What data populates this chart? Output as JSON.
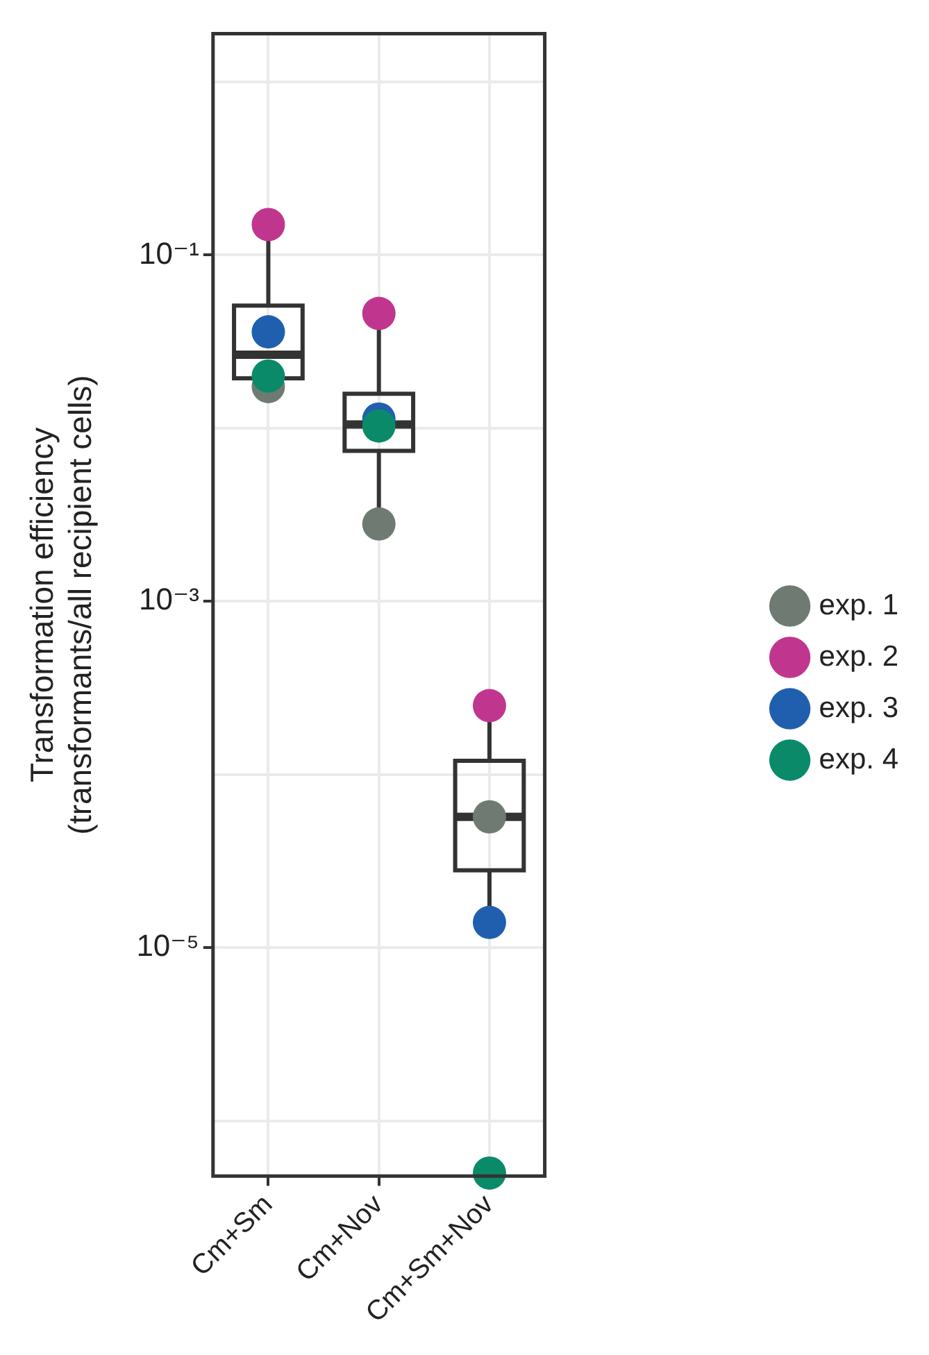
{
  "chart_data": {
    "type": "box",
    "categories": [
      "Cm+Sm",
      "Cm+Nov",
      "Cm+Sm+Nov"
    ],
    "boxes": [
      {
        "low": 0.0174,
        "q1": 0.0194,
        "median": 0.0266,
        "q3": 0.051,
        "high": 0.15
      },
      {
        "low": 0.0028,
        "q1": 0.0074,
        "median": 0.0105,
        "q3": 0.0158,
        "high": 0.046
      },
      {
        "low": 1.4e-05,
        "q1": 2.8e-05,
        "median": 5.7e-05,
        "q3": 0.00012,
        "high": 0.00025
      }
    ],
    "series": [
      {
        "name": "exp. 1",
        "type": "scatter",
        "color": "#6f7b72",
        "values": [
          0.0174,
          0.0028,
          5.7e-05
        ]
      },
      {
        "name": "exp. 2",
        "type": "scatter",
        "color": "#c0368f",
        "values": [
          0.15,
          0.046,
          0.00025
        ]
      },
      {
        "name": "exp. 3",
        "type": "scatter",
        "color": "#1f5fae",
        "values": [
          0.036,
          0.0113,
          1.4e-05
        ]
      },
      {
        "name": "exp. 4",
        "type": "scatter",
        "color": "#0b8a6a",
        "values": [
          0.02,
          0.0103,
          5e-07
        ]
      }
    ],
    "ylabel": "Transformation efficiency\n(transformants/all recipient cells)",
    "log": true,
    "ylim": [
      4.8e-07,
      1.9
    ],
    "yticks": [
      {
        "value": 1,
        "label": null
      },
      {
        "value": 0.1,
        "label": "10⁻¹"
      },
      {
        "value": 0.01,
        "label": null
      },
      {
        "value": 0.001,
        "label": "10⁻³"
      },
      {
        "value": 0.0001,
        "label": null
      },
      {
        "value": 1e-05,
        "label": "10⁻⁵"
      },
      {
        "value": 1e-06,
        "label": null
      }
    ],
    "grid": true,
    "legend": "right",
    "marker": "circle"
  }
}
